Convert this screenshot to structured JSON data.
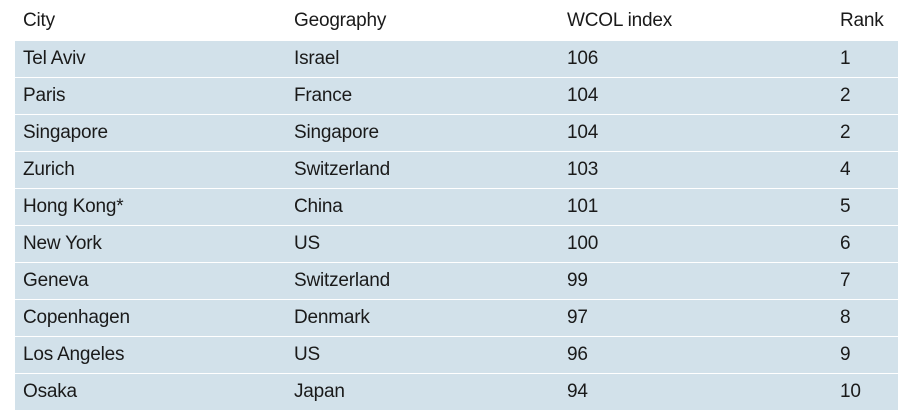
{
  "table": {
    "headers": {
      "city": "City",
      "geography": "Geography",
      "index": "WCOL index",
      "rank": "Rank"
    },
    "rows": [
      {
        "city": "Tel Aviv",
        "geography": "Israel",
        "index": "106",
        "rank": "1"
      },
      {
        "city": "Paris",
        "geography": "France",
        "index": "104",
        "rank": "2"
      },
      {
        "city": "Singapore",
        "geography": "Singapore",
        "index": "104",
        "rank": "2"
      },
      {
        "city": "Zurich",
        "geography": "Switzerland",
        "index": "103",
        "rank": "4"
      },
      {
        "city": "Hong Kong*",
        "geography": "China",
        "index": "101",
        "rank": "5"
      },
      {
        "city": "New York",
        "geography": "US",
        "index": "100",
        "rank": "6"
      },
      {
        "city": "Geneva",
        "geography": "Switzerland",
        "index": "99",
        "rank": "7"
      },
      {
        "city": "Copenhagen",
        "geography": "Denmark",
        "index": "97",
        "rank": "8"
      },
      {
        "city": "Los Angeles",
        "geography": "US",
        "index": "96",
        "rank": "9"
      },
      {
        "city": "Osaka",
        "geography": "Japan",
        "index": "94",
        "rank": "10"
      }
    ]
  },
  "colors": {
    "row_background": "#d2e1ea",
    "text": "#1a1a1a"
  }
}
